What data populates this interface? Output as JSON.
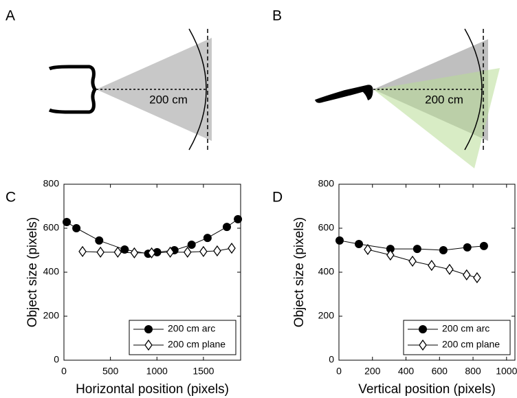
{
  "diagrams": [
    {
      "label": "A",
      "distance_label": "200 cm"
    },
    {
      "label": "B",
      "distance_label": "200 cm"
    }
  ],
  "chart_data": [
    {
      "type": "line",
      "panel_label": "C",
      "x_label": "Horizontal position (pixels)",
      "y_label": "Object size (pixels)",
      "xlim": [
        0,
        1900
      ],
      "xticks": [
        0,
        500,
        1000,
        1500
      ],
      "ylim": [
        0,
        800
      ],
      "yticks": [
        0,
        200,
        400,
        600,
        800
      ],
      "legend": "lower right",
      "grid": false,
      "series": [
        {
          "name": "200 cm arc",
          "color": "#000000",
          "marker": "circle",
          "fill": "#000000",
          "x": [
            30,
            134,
            379,
            653,
            906,
            1002,
            1188,
            1373,
            1544,
            1752,
            1871
          ],
          "values": [
            628,
            600,
            544,
            503,
            484,
            491,
            500,
            525,
            556,
            606,
            641
          ]
        },
        {
          "name": "200 cm plane",
          "color": "#000000",
          "marker": "diamond",
          "fill": "#ffffff",
          "x": [
            200,
            393,
            579,
            757,
            943,
            1143,
            1329,
            1500,
            1648,
            1804
          ],
          "values": [
            494,
            491,
            491,
            488,
            488,
            491,
            491,
            494,
            497,
            509
          ]
        }
      ]
    },
    {
      "type": "line",
      "panel_label": "D",
      "x_label": "Vertical position (pixels)",
      "y_label": "Object size (pixels)",
      "xlim": [
        0,
        1050
      ],
      "xticks": [
        0,
        200,
        400,
        600,
        800,
        1000
      ],
      "ylim": [
        0,
        800
      ],
      "yticks": [
        0,
        200,
        400,
        600,
        800
      ],
      "legend": "lower right",
      "grid": false,
      "series": [
        {
          "name": "200 cm arc",
          "color": "#000000",
          "marker": "circle",
          "fill": "#000000",
          "x": [
            4,
            119,
            307,
            467,
            623,
            766,
            865
          ],
          "values": [
            544,
            528,
            506,
            506,
            500,
            513,
            519
          ]
        },
        {
          "name": "200 cm plane",
          "color": "#000000",
          "marker": "diamond",
          "fill": "#ffffff",
          "x": [
            172,
            307,
            439,
            553,
            660,
            762,
            824
          ],
          "values": [
            503,
            478,
            450,
            431,
            413,
            388,
            375
          ]
        }
      ]
    }
  ]
}
